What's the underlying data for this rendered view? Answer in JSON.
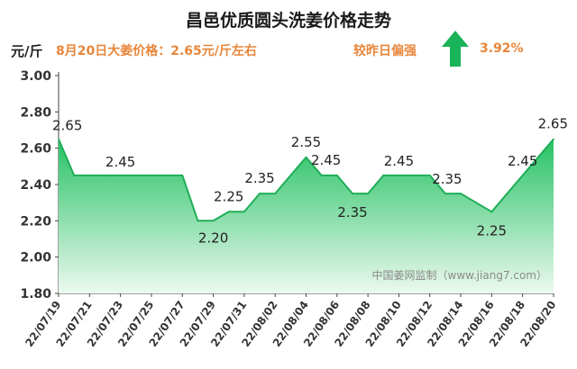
{
  "header": {
    "title": "昌邑优质圆头洗姜价格走势",
    "unit": "元/斤",
    "price_info": "8月20日大姜价格：2.65元/斤左右",
    "compare_label": "较昨日偏强",
    "compare_value": "3.92%",
    "trend_icon": "up-arrow-icon",
    "trend_color": "#19b35a"
  },
  "watermark": "中国姜网监制（www.jiang7.com）",
  "chart_data": {
    "type": "area",
    "title": "昌邑优质圆头洗姜价格走势",
    "ylabel": "元/斤",
    "xlabel": "",
    "ylim": [
      1.8,
      3.0
    ],
    "yticks": [
      "1.80",
      "2.00",
      "2.20",
      "2.40",
      "2.60",
      "2.80",
      "3.00"
    ],
    "xticks": [
      "22/07/19",
      "22/07/21",
      "22/07/23",
      "22/07/25",
      "22/07/27",
      "22/07/29",
      "22/07/31",
      "22/08/02",
      "22/08/04",
      "22/08/06",
      "22/08/08",
      "22/08/10",
      "22/08/12",
      "22/08/14",
      "22/08/16",
      "22/08/18",
      "22/08/20"
    ],
    "x": [
      "22/07/19",
      "22/07/20",
      "22/07/21",
      "22/07/22",
      "22/07/23",
      "22/07/24",
      "22/07/25",
      "22/07/26",
      "22/07/27",
      "22/07/28",
      "22/07/29",
      "22/07/30",
      "22/07/31",
      "22/08/01",
      "22/08/02",
      "22/08/03",
      "22/08/04",
      "22/08/05",
      "22/08/06",
      "22/08/07",
      "22/08/08",
      "22/08/09",
      "22/08/10",
      "22/08/11",
      "22/08/12",
      "22/08/13",
      "22/08/14",
      "22/08/15",
      "22/08/16",
      "22/08/17",
      "22/08/18",
      "22/08/19",
      "22/08/20"
    ],
    "values": [
      2.65,
      2.45,
      2.45,
      2.45,
      2.45,
      2.45,
      2.45,
      2.45,
      2.45,
      2.2,
      2.2,
      2.25,
      2.25,
      2.35,
      2.35,
      2.45,
      2.55,
      2.45,
      2.45,
      2.35,
      2.35,
      2.45,
      2.45,
      2.45,
      2.45,
      2.35,
      2.35,
      2.3,
      2.25,
      2.35,
      2.45,
      2.55,
      2.65
    ],
    "data_labels": [
      {
        "date": "22/07/19",
        "text": "2.65"
      },
      {
        "date": "22/07/23",
        "text": "2.45"
      },
      {
        "date": "22/07/29",
        "text": "2.20"
      },
      {
        "date": "22/07/30",
        "text": "2.25"
      },
      {
        "date": "22/08/01",
        "text": "2.35"
      },
      {
        "date": "22/08/04",
        "text": "2.55"
      },
      {
        "date": "22/08/05",
        "text": "2.45"
      },
      {
        "date": "22/08/07",
        "text": "2.35"
      },
      {
        "date": "22/08/10",
        "text": "2.45"
      },
      {
        "date": "22/08/13",
        "text": "2.35"
      },
      {
        "date": "22/08/16",
        "text": "2.25"
      },
      {
        "date": "22/08/18",
        "text": "2.45"
      },
      {
        "date": "22/08/20",
        "text": "2.65"
      }
    ],
    "colors": {
      "line": "#1fae57",
      "fill_top": "#27c265",
      "fill_bottom": "#ecf9ef"
    },
    "grid": false,
    "legend": "none"
  }
}
